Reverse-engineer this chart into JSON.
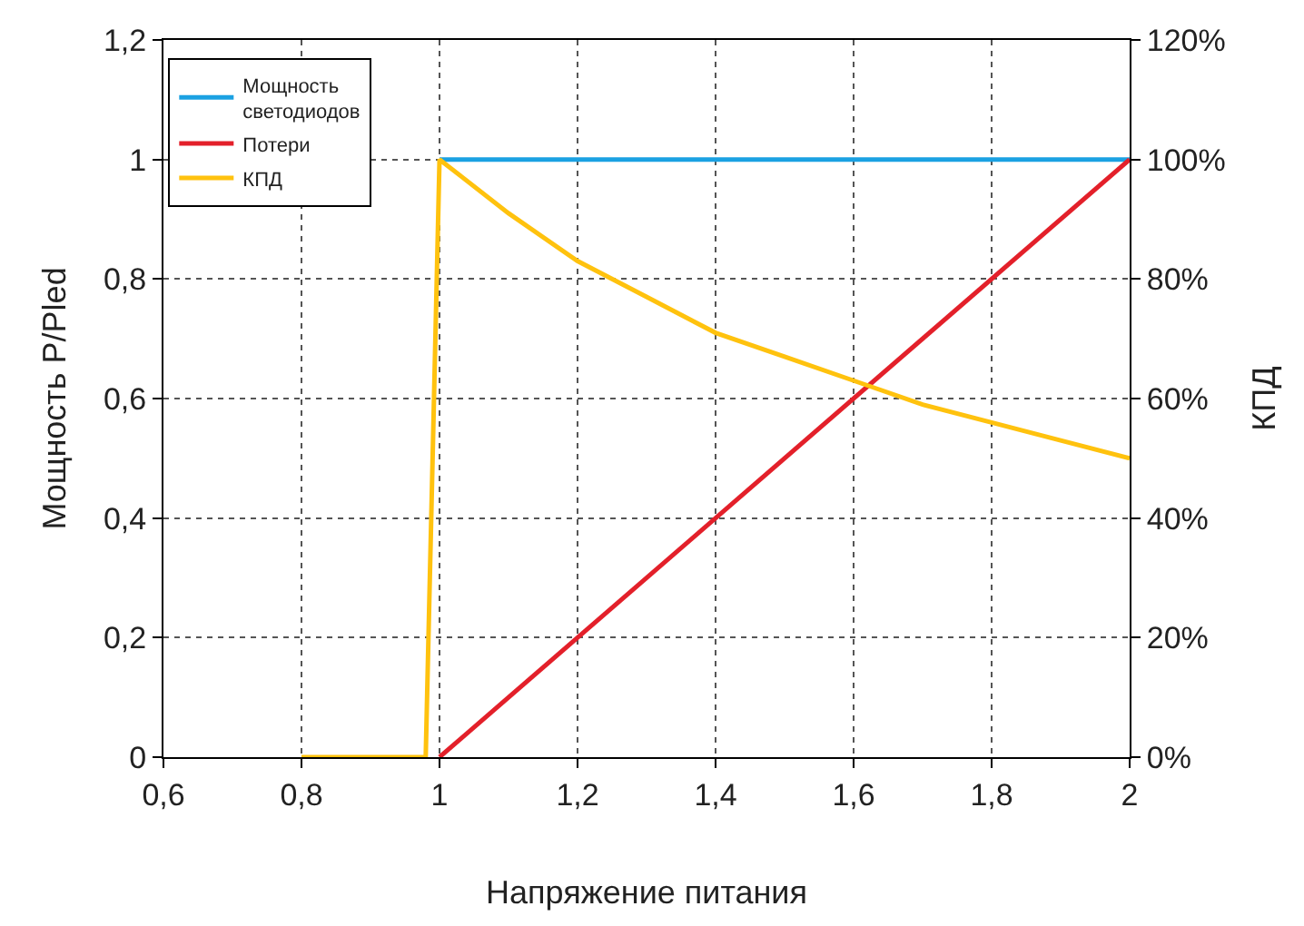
{
  "chart_data": {
    "type": "line",
    "xlabel": "Напряжение питания",
    "ylabel": "Мощность P/Pled",
    "y2label": "КПД",
    "series": [
      {
        "name": "Мощность светодиодов",
        "color": "#1ba1e2",
        "x": [
          1.0,
          2.0
        ],
        "values": [
          1,
          1
        ]
      },
      {
        "name": "Потери",
        "color": "#e3202a",
        "x": [
          1.0,
          2.0
        ],
        "values": [
          0,
          1
        ]
      },
      {
        "name": "КПД",
        "color": "#ffc20e",
        "axis": "y2",
        "x": [
          0.8,
          0.98,
          1.0,
          1.1,
          1.2,
          1.3,
          1.4,
          1.5,
          1.6,
          1.7,
          1.8,
          1.9,
          2.0
        ],
        "values": [
          0,
          0,
          100,
          91,
          83,
          77,
          71,
          67,
          63,
          59,
          56,
          53,
          50
        ]
      }
    ],
    "xlim": [
      0.6,
      2
    ],
    "xticks": [
      {
        "value": 0.6,
        "label": "0,6"
      },
      {
        "value": 0.8,
        "label": "0,8"
      },
      1,
      {
        "value": 1.2,
        "label": "1,2"
      },
      {
        "value": 1.4,
        "label": "1,4"
      },
      {
        "value": 1.6,
        "label": "1,6"
      },
      {
        "value": 1.8,
        "label": "1,8"
      },
      2
    ],
    "ylim": [
      0,
      1.2
    ],
    "yticks": [
      0,
      {
        "value": 0.2,
        "label": "0,2"
      },
      {
        "value": 0.4,
        "label": "0,4"
      },
      {
        "value": 0.6,
        "label": "0,6"
      },
      {
        "value": 0.8,
        "label": "0,8"
      },
      1,
      {
        "value": 1.2,
        "label": "1,2"
      }
    ],
    "y2lim": [
      0,
      120
    ],
    "y2ticks": [
      {
        "value": 0,
        "label": "0%"
      },
      {
        "value": 20,
        "label": "20%"
      },
      {
        "value": 40,
        "label": "40%"
      },
      {
        "value": 60,
        "label": "60%"
      },
      {
        "value": 80,
        "label": "80%"
      },
      {
        "value": 100,
        "label": "100%"
      },
      {
        "value": 120,
        "label": "120%"
      }
    ],
    "grid": true,
    "legend": "top left",
    "line_style": "solid",
    "marker": "none"
  }
}
